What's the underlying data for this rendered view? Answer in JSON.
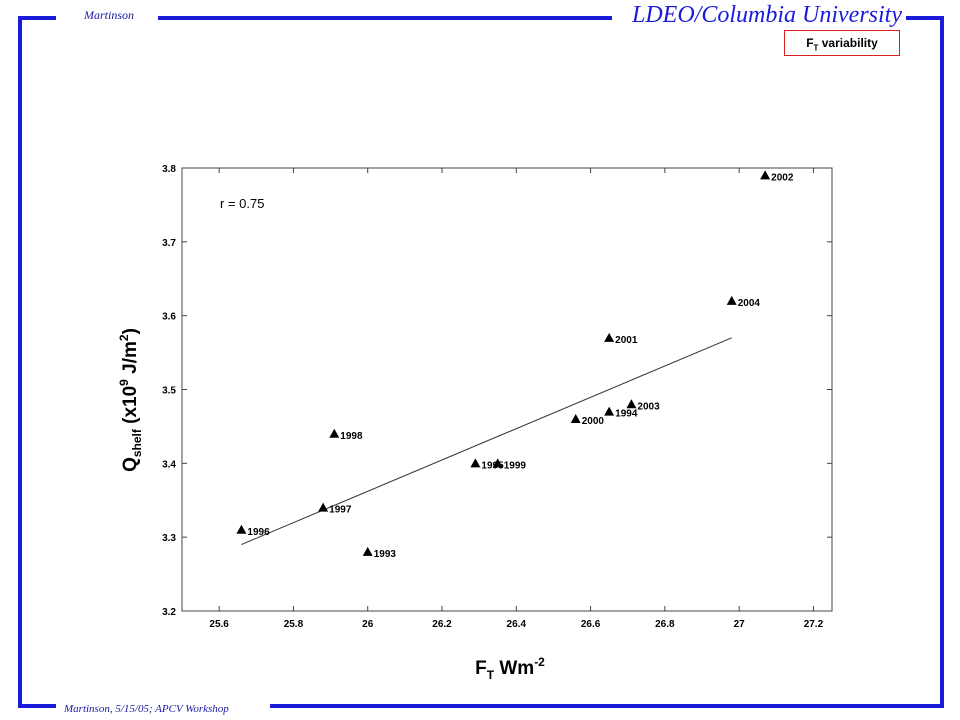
{
  "header": {
    "author": "Martinson",
    "institution": "LDEO/Columbia University",
    "badge": {
      "main": "F",
      "sub": "T",
      "rest": " variability"
    }
  },
  "footer": {
    "text": "Martinson, 5/15/05; APCV Workshop"
  },
  "colors": {
    "frame": "#1a1adb",
    "badge_border": "#e02020",
    "text_blue": "#1a1aa0"
  },
  "chart_data": {
    "type": "scatter",
    "annotation": "r  =  0.75",
    "xlabel": {
      "main": "F",
      "sub": "T",
      "rest": " Wm",
      "sup": "-2"
    },
    "ylabel": {
      "main": "Q",
      "sub": "shelf",
      "rest": "  (x10",
      "sup": "9",
      "rest2": " J/m",
      "sup2": "2",
      "end": ")"
    },
    "xlim": [
      25.5,
      27.25
    ],
    "ylim": [
      3.2,
      3.8
    ],
    "xticks": [
      25.6,
      25.8,
      26,
      26.2,
      26.4,
      26.6,
      26.8,
      27,
      27.2
    ],
    "xtick_labels": [
      "25.6",
      "25.8",
      "26",
      "26.2",
      "26.4",
      "26.6",
      "26.8",
      "27",
      "27.2"
    ],
    "yticks": [
      3.2,
      3.3,
      3.4,
      3.5,
      3.6,
      3.7,
      3.8
    ],
    "ytick_labels": [
      "3.2",
      "3.3",
      "3.4",
      "3.5",
      "3.6",
      "3.7",
      "3.8"
    ],
    "grid": false,
    "points": [
      {
        "x": 25.66,
        "y": 3.31,
        "label": "1996"
      },
      {
        "x": 25.88,
        "y": 3.34,
        "label": "1997"
      },
      {
        "x": 25.91,
        "y": 3.44,
        "label": "1998"
      },
      {
        "x": 26.0,
        "y": 3.28,
        "label": "1993"
      },
      {
        "x": 26.29,
        "y": 3.4,
        "label": "1995"
      },
      {
        "x": 26.35,
        "y": 3.4,
        "label": "1999"
      },
      {
        "x": 26.56,
        "y": 3.46,
        "label": "2000"
      },
      {
        "x": 26.65,
        "y": 3.47,
        "label": "1994"
      },
      {
        "x": 26.71,
        "y": 3.48,
        "label": "2003"
      },
      {
        "x": 26.65,
        "y": 3.57,
        "label": "2001"
      },
      {
        "x": 26.98,
        "y": 3.62,
        "label": "2004"
      },
      {
        "x": 27.07,
        "y": 3.79,
        "label": "2002"
      }
    ],
    "fit_line": {
      "x": [
        25.66,
        26.98
      ],
      "y": [
        3.29,
        3.57
      ]
    }
  }
}
